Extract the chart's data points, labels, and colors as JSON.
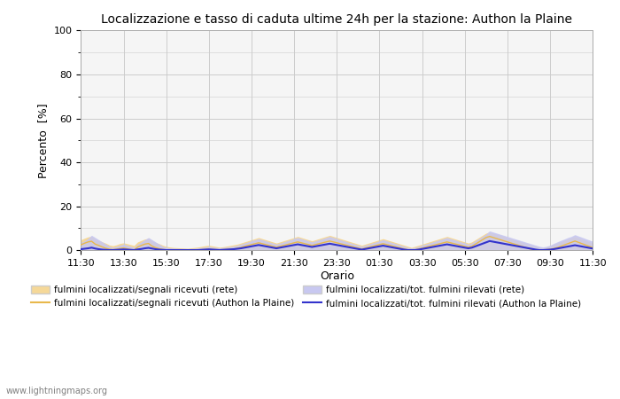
{
  "title": "Localizzazione e tasso di caduta ultime 24h per la stazione: Authon la Plaine",
  "ylabel": "Percento  [%]",
  "xlabel": "Orario",
  "ylim": [
    0,
    100
  ],
  "yticks": [
    0,
    20,
    40,
    60,
    80,
    100
  ],
  "yticks_minor": [
    10,
    30,
    50,
    70,
    90
  ],
  "xtick_labels": [
    "11:30",
    "13:30",
    "15:30",
    "17:30",
    "19:30",
    "21:30",
    "23:30",
    "01:30",
    "03:30",
    "05:30",
    "07:30",
    "09:30",
    "11:30"
  ],
  "background_color": "#ffffff",
  "plot_bg_color": "#f5f5f5",
  "grid_color": "#cccccc",
  "watermark": "www.lightningmaps.org",
  "fill_rete_color": "#f5d898",
  "fill_station_color": "#c8c8f0",
  "line_rete_color": "#e8b84b",
  "line_station_color": "#3333cc",
  "legend": [
    {
      "label": "fulmini localizzati/segnali ricevuti (rete)",
      "type": "fill",
      "color": "#f5d898"
    },
    {
      "label": "fulmini localizzati/segnali ricevuti (Authon la Plaine)",
      "type": "line",
      "color": "#e8b84b"
    },
    {
      "label": "fulmini localizzati/tot. fulmini rilevati (rete)",
      "type": "fill",
      "color": "#c8c8f0"
    },
    {
      "label": "fulmini localizzati/tot. fulmini rilevati (Authon la Plaine)",
      "type": "line",
      "color": "#3333cc"
    }
  ],
  "n_points": 145,
  "rete_fill_values": [
    4.5,
    5.2,
    5.8,
    6.1,
    4.8,
    4.2,
    3.5,
    2.9,
    2.1,
    1.8,
    2.2,
    2.8,
    3.1,
    2.7,
    2.3,
    1.9,
    3.5,
    4.2,
    4.8,
    5.1,
    3.9,
    3.2,
    2.7,
    2.0,
    1.5,
    1.2,
    1.0,
    0.9,
    0.8,
    0.7,
    0.6,
    0.8,
    1.0,
    1.2,
    1.5,
    1.8,
    2.0,
    1.7,
    1.4,
    1.1,
    1.3,
    1.6,
    1.9,
    2.2,
    2.5,
    3.0,
    3.5,
    4.0,
    4.5,
    5.0,
    5.5,
    5.0,
    4.5,
    4.0,
    3.5,
    3.0,
    3.5,
    4.0,
    4.5,
    5.0,
    5.5,
    6.0,
    5.5,
    5.0,
    4.5,
    4.0,
    4.5,
    5.0,
    5.5,
    6.0,
    6.5,
    6.0,
    5.5,
    5.0,
    4.5,
    4.0,
    3.5,
    3.0,
    2.5,
    2.0,
    2.5,
    3.0,
    3.5,
    4.0,
    4.5,
    5.0,
    4.5,
    4.0,
    3.5,
    3.0,
    2.5,
    2.0,
    1.5,
    1.0,
    1.5,
    2.0,
    2.5,
    3.0,
    3.5,
    4.0,
    4.5,
    5.0,
    5.5,
    6.0,
    5.5,
    5.0,
    4.5,
    4.0,
    3.5,
    3.0,
    3.5,
    4.5,
    5.5,
    6.5,
    7.5,
    8.0,
    7.5,
    7.0,
    6.5,
    6.0,
    5.5,
    5.0,
    4.5,
    4.0,
    3.5,
    3.0,
    2.5,
    2.0,
    1.5,
    1.0,
    0.8,
    1.2,
    1.8,
    2.4,
    3.0,
    3.6,
    4.2,
    4.8,
    5.4,
    6.0,
    5.4,
    4.8,
    4.2,
    3.6,
    3.0
  ],
  "station_fill_values": [
    3.2,
    4.0,
    5.0,
    6.5,
    5.5,
    4.5,
    3.5,
    2.5,
    1.5,
    1.0,
    1.5,
    2.0,
    2.5,
    2.0,
    1.5,
    1.0,
    2.5,
    3.5,
    4.5,
    5.5,
    4.5,
    3.5,
    2.5,
    1.5,
    1.0,
    0.8,
    0.7,
    0.6,
    0.5,
    0.5,
    0.4,
    0.5,
    0.6,
    0.8,
    1.0,
    1.2,
    1.4,
    1.2,
    1.0,
    0.8,
    1.0,
    1.2,
    1.4,
    1.6,
    2.0,
    2.5,
    3.0,
    3.5,
    4.0,
    4.5,
    5.0,
    4.5,
    4.0,
    3.5,
    3.0,
    2.5,
    3.0,
    3.5,
    4.0,
    4.5,
    5.0,
    5.5,
    5.0,
    4.5,
    4.0,
    3.5,
    4.0,
    4.5,
    5.0,
    5.5,
    6.0,
    5.5,
    5.0,
    4.5,
    4.0,
    3.5,
    3.0,
    2.5,
    2.0,
    1.5,
    2.0,
    2.5,
    3.0,
    3.5,
    4.0,
    4.5,
    4.0,
    3.5,
    3.0,
    2.5,
    2.0,
    1.5,
    1.0,
    0.7,
    1.0,
    1.5,
    2.0,
    2.5,
    3.0,
    3.5,
    4.0,
    4.5,
    5.0,
    5.5,
    5.0,
    4.5,
    4.0,
    3.5,
    3.0,
    2.5,
    3.0,
    4.0,
    5.0,
    6.0,
    7.0,
    8.5,
    8.0,
    7.5,
    7.0,
    6.5,
    6.0,
    5.5,
    5.0,
    4.5,
    4.0,
    3.5,
    3.0,
    2.5,
    2.0,
    1.5,
    1.2,
    1.5,
    2.0,
    2.8,
    3.5,
    4.2,
    4.8,
    5.5,
    6.0,
    6.8,
    6.2,
    5.6,
    5.0,
    4.4,
    3.8
  ],
  "rete_line_values": [
    2.5,
    3.2,
    3.8,
    4.1,
    2.8,
    2.2,
    1.5,
    0.9,
    0.5,
    0.3,
    0.5,
    0.8,
    1.1,
    0.7,
    0.3,
    0.2,
    1.5,
    2.2,
    2.8,
    3.1,
    1.9,
    1.2,
    0.7,
    0.4,
    0.2,
    0.1,
    0.1,
    0.1,
    0.1,
    0.1,
    0.1,
    0.1,
    0.1,
    0.2,
    0.3,
    0.4,
    0.5,
    0.4,
    0.3,
    0.2,
    0.3,
    0.4,
    0.5,
    0.6,
    0.9,
    1.3,
    1.8,
    2.2,
    2.6,
    3.0,
    3.4,
    3.0,
    2.6,
    2.2,
    1.8,
    1.4,
    1.8,
    2.2,
    2.6,
    3.0,
    3.4,
    3.8,
    3.4,
    3.0,
    2.6,
    2.2,
    2.6,
    3.0,
    3.4,
    3.8,
    4.2,
    3.8,
    3.4,
    3.0,
    2.6,
    2.2,
    1.8,
    1.4,
    1.0,
    0.6,
    1.0,
    1.4,
    1.8,
    2.2,
    2.6,
    3.0,
    2.6,
    2.2,
    1.8,
    1.4,
    1.0,
    0.6,
    0.2,
    0.1,
    0.2,
    0.6,
    1.0,
    1.4,
    1.8,
    2.2,
    2.6,
    3.0,
    3.4,
    3.8,
    3.4,
    3.0,
    2.6,
    2.2,
    1.8,
    1.4,
    1.8,
    2.8,
    3.8,
    4.8,
    5.8,
    6.3,
    5.8,
    5.3,
    4.8,
    4.3,
    3.8,
    3.3,
    2.8,
    2.3,
    1.8,
    1.3,
    0.8,
    0.3,
    0.2,
    0.1,
    0.1,
    0.3,
    0.5,
    0.8,
    1.2,
    1.8,
    2.4,
    3.0,
    3.6,
    4.2,
    3.6,
    3.0,
    2.4,
    1.8,
    1.2
  ],
  "station_line_values": [
    0.5,
    0.7,
    0.9,
    1.2,
    0.8,
    0.5,
    0.3,
    0.2,
    0.1,
    0.1,
    0.2,
    0.3,
    0.4,
    0.3,
    0.2,
    0.1,
    0.4,
    0.6,
    0.9,
    1.1,
    0.8,
    0.5,
    0.3,
    0.2,
    0.1,
    0.1,
    0.1,
    0.1,
    0.1,
    0.1,
    0.1,
    0.1,
    0.1,
    0.1,
    0.2,
    0.3,
    0.4,
    0.3,
    0.2,
    0.1,
    0.2,
    0.3,
    0.4,
    0.5,
    0.7,
    0.9,
    1.2,
    1.5,
    1.8,
    2.1,
    2.4,
    2.1,
    1.8,
    1.5,
    1.2,
    0.9,
    1.2,
    1.5,
    1.8,
    2.1,
    2.4,
    2.7,
    2.4,
    2.1,
    1.8,
    1.5,
    1.8,
    2.1,
    2.4,
    2.7,
    3.0,
    2.7,
    2.4,
    2.1,
    1.8,
    1.5,
    1.2,
    0.9,
    0.6,
    0.3,
    0.6,
    0.9,
    1.2,
    1.5,
    1.8,
    2.1,
    1.8,
    1.5,
    1.2,
    0.9,
    0.6,
    0.3,
    0.1,
    0.1,
    0.1,
    0.3,
    0.6,
    0.9,
    1.2,
    1.5,
    1.8,
    2.1,
    2.4,
    2.7,
    2.4,
    2.1,
    1.8,
    1.5,
    1.2,
    0.9,
    1.2,
    1.8,
    2.4,
    3.0,
    3.6,
    4.2,
    3.9,
    3.6,
    3.3,
    3.0,
    2.7,
    2.4,
    2.1,
    1.8,
    1.5,
    1.2,
    0.9,
    0.6,
    0.3,
    0.1,
    0.1,
    0.2,
    0.3,
    0.5,
    0.8,
    1.1,
    1.4,
    1.7,
    2.0,
    2.3,
    2.0,
    1.7,
    1.4,
    1.1,
    0.8
  ]
}
